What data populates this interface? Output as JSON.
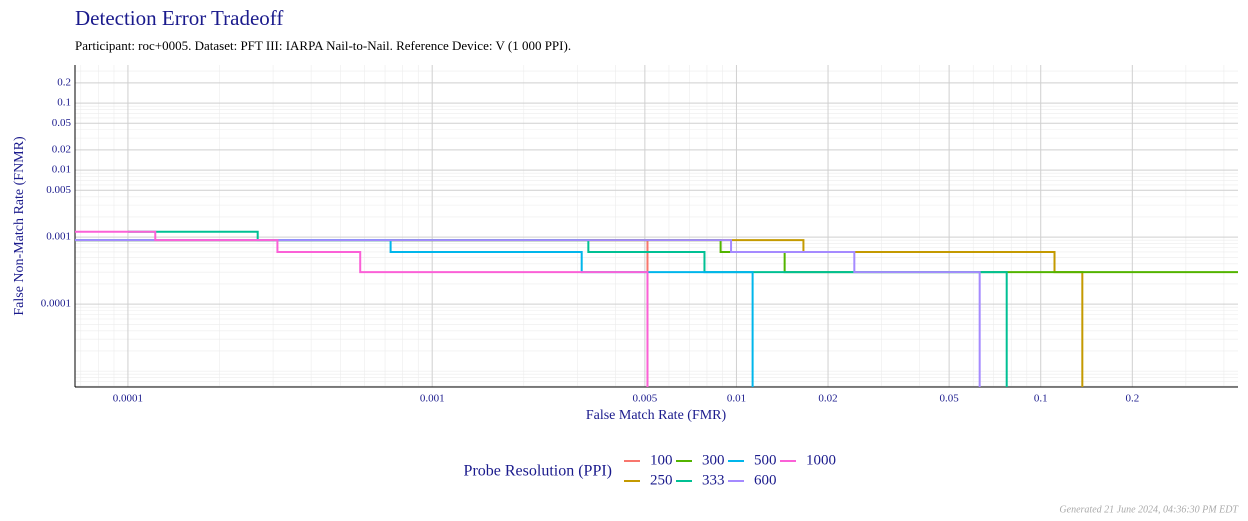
{
  "chart_data": {
    "type": "step",
    "title": "Detection Error Tradeoff",
    "subtitle": "Participant: roc+0005. Dataset: PFT III: IARPA Nail-to-Nail. Reference Device: V (1 000 PPI).",
    "x_label": "False Match Rate (FMR)",
    "y_label": "False Non-Match Rate (FNMR)",
    "legend_title": "Probe Resolution (PPI)",
    "footer": "Generated 21 June 2024, 04:36:30 PM EDT",
    "log_x": true,
    "log_y": true,
    "grid": true,
    "xlim": [
      6.7e-05,
      0.445
    ],
    "ylim": [
      5.8e-06,
      0.37
    ],
    "xticks": [
      0.0001,
      0.001,
      0.005,
      0.01,
      0.02,
      0.05,
      0.1,
      0.2
    ],
    "yticks": [
      0.0001,
      0.001,
      0.005,
      0.01,
      0.02,
      0.05,
      0.1,
      0.2
    ],
    "series": [
      {
        "name": "100",
        "color": "#F8766D",
        "x": [
          6.7e-05,
          0.0051,
          0.0051
        ],
        "values": [
          0.0009,
          0.0009,
          5.8e-06
        ]
      },
      {
        "name": "250",
        "color": "#C49A00",
        "x": [
          6.7e-05,
          0.0166,
          0.111,
          0.137
        ],
        "values": [
          0.0009,
          0.0006,
          0.0003,
          5.8e-06
        ]
      },
      {
        "name": "300",
        "color": "#53B400",
        "x": [
          6.7e-05,
          0.00887,
          0.0144,
          0.445
        ],
        "values": [
          0.0009,
          0.0006,
          0.0003,
          0.0003
        ]
      },
      {
        "name": "333",
        "color": "#00C094",
        "x": [
          0.0001,
          0.000267,
          0.00326,
          0.00785,
          0.0773
        ],
        "values": [
          0.0012,
          0.0009,
          0.0006,
          0.0003,
          5.8e-06
        ]
      },
      {
        "name": "500",
        "color": "#00B6EB",
        "x": [
          6.7e-05,
          0.00073,
          0.0031,
          0.0113
        ],
        "values": [
          0.0009,
          0.0006,
          0.0003,
          5.8e-06
        ]
      },
      {
        "name": "600",
        "color": "#A58AFF",
        "x": [
          6.7e-05,
          0.0096,
          0.0244,
          0.063
        ],
        "values": [
          0.0009,
          0.0006,
          0.0003,
          5.8e-06
        ]
      },
      {
        "name": "1000",
        "color": "#FB61D7",
        "x": [
          6.7e-05,
          0.000123,
          0.00031,
          0.00058,
          0.0051
        ],
        "values": [
          0.0012,
          0.0009,
          0.0006,
          0.0003,
          5.8e-06
        ]
      }
    ]
  }
}
